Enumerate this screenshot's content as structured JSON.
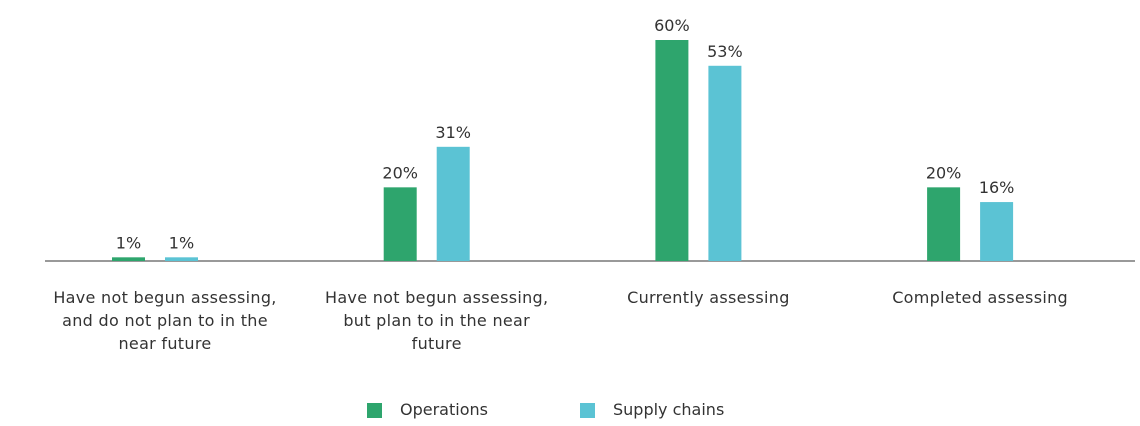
{
  "chart_data": {
    "type": "bar",
    "categories": [
      "Have not begun assessing, and do not plan to in the near future",
      "Have not begun assessing, but plan to in the near future",
      "Currently assessing",
      "Completed assessing"
    ],
    "series": [
      {
        "name": "Operations",
        "color": "#2ea56d",
        "values": [
          1,
          20,
          60,
          20
        ],
        "value_labels": [
          "1%",
          "20%",
          "60%",
          "20%"
        ]
      },
      {
        "name": "Supply chains",
        "color": "#5bc3d4",
        "values": [
          1,
          31,
          53,
          16
        ],
        "value_labels": [
          "1%",
          "31%",
          "53%",
          "16%"
        ]
      }
    ],
    "legend": "bottom"
  }
}
